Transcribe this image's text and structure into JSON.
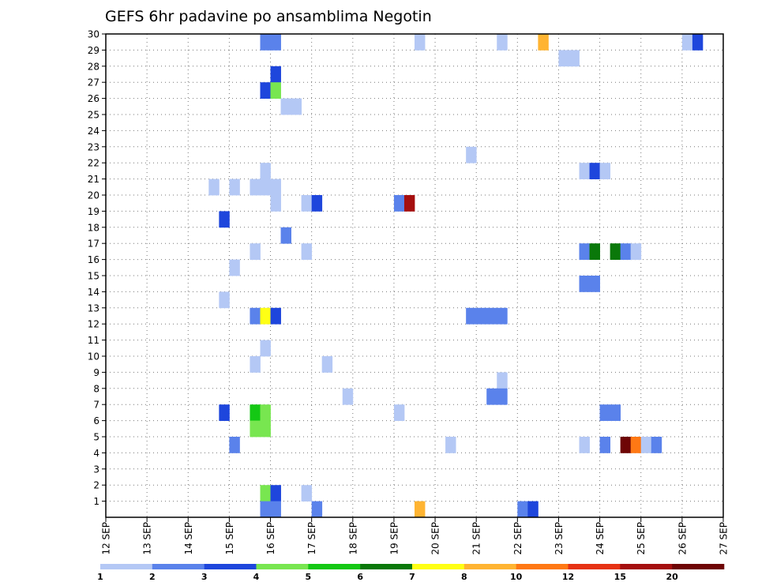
{
  "chart_data": {
    "type": "heatmap",
    "title": "GEFS 6hr padavine po ansamblima Negotin",
    "xlabel": "",
    "ylabel": "",
    "x_ticks": [
      "12 SEP",
      "13 SEP",
      "14 SEP",
      "15 SEP",
      "16 SEP",
      "17 SEP",
      "18 SEP",
      "19 SEP",
      "20 SEP",
      "21 SEP",
      "22 SEP",
      "23 SEP",
      "24 SEP",
      "25 SEP",
      "26 SEP",
      "27 SEP"
    ],
    "xlim_days": [
      0,
      15
    ],
    "y_ticks": [
      1,
      2,
      3,
      4,
      5,
      6,
      7,
      8,
      9,
      10,
      11,
      12,
      13,
      14,
      15,
      16,
      17,
      18,
      19,
      20,
      21,
      22,
      23,
      24,
      25,
      26,
      27,
      28,
      29,
      30
    ],
    "ylim": [
      0,
      30
    ],
    "grid": true,
    "colorbar": {
      "labels": [
        "1",
        "2",
        "3",
        "4",
        "5",
        "6",
        "7",
        "8",
        "10",
        "12",
        "15",
        "20"
      ],
      "colors": [
        "#b4c8f5",
        "#5a82eb",
        "#1e46dc",
        "#78e650",
        "#14c814",
        "#0a780a",
        "#ffff14",
        "#ffb432",
        "#ff7814",
        "#e63214",
        "#a50f0f",
        "#6e0505"
      ],
      "placement": "bottom"
    },
    "cells": [
      {
        "d": 3.75,
        "m": 30,
        "c": 1
      },
      {
        "d": 4.0,
        "m": 30,
        "c": 1
      },
      {
        "d": 7.5,
        "m": 30,
        "c": 0
      },
      {
        "d": 9.5,
        "m": 30,
        "c": 0
      },
      {
        "d": 10.5,
        "m": 30,
        "c": 7
      },
      {
        "d": 14.0,
        "m": 30,
        "c": 0
      },
      {
        "d": 14.25,
        "m": 30,
        "c": 2
      },
      {
        "d": 11.0,
        "m": 29,
        "c": 0
      },
      {
        "d": 11.25,
        "m": 29,
        "c": 0
      },
      {
        "d": 4.0,
        "m": 28,
        "c": 2
      },
      {
        "d": 3.75,
        "m": 27,
        "c": 2
      },
      {
        "d": 4.0,
        "m": 27,
        "c": 3
      },
      {
        "d": 4.25,
        "m": 26,
        "c": 0
      },
      {
        "d": 4.5,
        "m": 26,
        "c": 0
      },
      {
        "d": 8.75,
        "m": 23,
        "c": 0
      },
      {
        "d": 3.75,
        "m": 22,
        "c": 0
      },
      {
        "d": 11.5,
        "m": 22,
        "c": 0
      },
      {
        "d": 11.75,
        "m": 22,
        "c": 2
      },
      {
        "d": 12.0,
        "m": 22,
        "c": 0
      },
      {
        "d": 2.5,
        "m": 21,
        "c": 0
      },
      {
        "d": 3.0,
        "m": 21,
        "c": 0
      },
      {
        "d": 3.5,
        "m": 21,
        "c": 0
      },
      {
        "d": 3.75,
        "m": 21,
        "c": 0
      },
      {
        "d": 4.0,
        "m": 21,
        "c": 0
      },
      {
        "d": 4.0,
        "m": 20,
        "c": 0
      },
      {
        "d": 4.75,
        "m": 20,
        "c": 0
      },
      {
        "d": 5.0,
        "m": 20,
        "c": 2
      },
      {
        "d": 7.0,
        "m": 20,
        "c": 1
      },
      {
        "d": 7.25,
        "m": 20,
        "c": 10
      },
      {
        "d": 2.75,
        "m": 19,
        "c": 2
      },
      {
        "d": 4.25,
        "m": 18,
        "c": 1
      },
      {
        "d": 3.5,
        "m": 17,
        "c": 0
      },
      {
        "d": 4.75,
        "m": 17,
        "c": 0
      },
      {
        "d": 11.5,
        "m": 17,
        "c": 1
      },
      {
        "d": 11.75,
        "m": 17,
        "c": 5
      },
      {
        "d": 12.25,
        "m": 17,
        "c": 5
      },
      {
        "d": 12.5,
        "m": 17,
        "c": 1
      },
      {
        "d": 12.75,
        "m": 17,
        "c": 0
      },
      {
        "d": 3.0,
        "m": 16,
        "c": 0
      },
      {
        "d": 11.5,
        "m": 15,
        "c": 1
      },
      {
        "d": 11.75,
        "m": 15,
        "c": 1
      },
      {
        "d": 2.75,
        "m": 14,
        "c": 0
      },
      {
        "d": 3.5,
        "m": 13,
        "c": 1
      },
      {
        "d": 3.75,
        "m": 13,
        "c": 6
      },
      {
        "d": 4.0,
        "m": 13,
        "c": 2
      },
      {
        "d": 8.75,
        "m": 13,
        "c": 1
      },
      {
        "d": 9.0,
        "m": 13,
        "c": 1
      },
      {
        "d": 9.25,
        "m": 13,
        "c": 1
      },
      {
        "d": 9.5,
        "m": 13,
        "c": 1
      },
      {
        "d": 3.75,
        "m": 11,
        "c": 0
      },
      {
        "d": 3.5,
        "m": 10,
        "c": 0
      },
      {
        "d": 5.25,
        "m": 10,
        "c": 0
      },
      {
        "d": 9.5,
        "m": 9,
        "c": 0
      },
      {
        "d": 5.75,
        "m": 8,
        "c": 0
      },
      {
        "d": 9.25,
        "m": 8,
        "c": 1
      },
      {
        "d": 9.5,
        "m": 8,
        "c": 1
      },
      {
        "d": 2.75,
        "m": 7,
        "c": 2
      },
      {
        "d": 3.5,
        "m": 7,
        "c": 4
      },
      {
        "d": 3.75,
        "m": 7,
        "c": 3
      },
      {
        "d": 7.0,
        "m": 7,
        "c": 0
      },
      {
        "d": 12.0,
        "m": 7,
        "c": 1
      },
      {
        "d": 12.25,
        "m": 7,
        "c": 1
      },
      {
        "d": 3.5,
        "m": 6,
        "c": 3
      },
      {
        "d": 3.75,
        "m": 6,
        "c": 3
      },
      {
        "d": 3.0,
        "m": 5,
        "c": 1
      },
      {
        "d": 8.25,
        "m": 5,
        "c": 0
      },
      {
        "d": 11.5,
        "m": 5,
        "c": 0
      },
      {
        "d": 12.0,
        "m": 5,
        "c": 1
      },
      {
        "d": 12.5,
        "m": 5,
        "c": 11
      },
      {
        "d": 12.75,
        "m": 5,
        "c": 8
      },
      {
        "d": 13.0,
        "m": 5,
        "c": 0
      },
      {
        "d": 13.25,
        "m": 5,
        "c": 1
      },
      {
        "d": 3.75,
        "m": 2,
        "c": 3
      },
      {
        "d": 4.0,
        "m": 2,
        "c": 2
      },
      {
        "d": 4.75,
        "m": 2,
        "c": 0
      },
      {
        "d": 3.75,
        "m": 1,
        "c": 1
      },
      {
        "d": 4.0,
        "m": 1,
        "c": 1
      },
      {
        "d": 5.0,
        "m": 1,
        "c": 1
      },
      {
        "d": 7.5,
        "m": 1,
        "c": 7
      },
      {
        "d": 10.0,
        "m": 1,
        "c": 1
      },
      {
        "d": 10.25,
        "m": 1,
        "c": 2
      }
    ]
  }
}
